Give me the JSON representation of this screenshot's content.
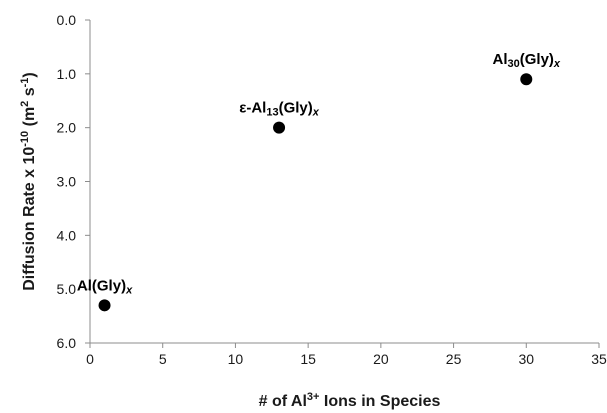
{
  "chart_data": {
    "type": "scatter",
    "xlabel": {
      "pre": "# of Al",
      "sup": "3+",
      "post": " Ions in Species"
    },
    "ylabel": {
      "pre": "Diffusion Rate x 10",
      "sup1": "-10",
      "mid": " (m",
      "sup2": "2",
      "mid2": " s",
      "sup3": "-1",
      "post": ")"
    },
    "xlim": [
      0,
      35
    ],
    "ylim": [
      0.0,
      6.0
    ],
    "y_inverted": true,
    "x_ticks": [
      "0",
      "5",
      "10",
      "15",
      "20",
      "25",
      "30",
      "35"
    ],
    "y_ticks": [
      "0.0",
      "1.0",
      "2.0",
      "3.0",
      "4.0",
      "5.0",
      "6.0"
    ],
    "marker_color": "#000000",
    "grid": false,
    "points": [
      {
        "x": 1,
        "y": 5.3,
        "label": [
          {
            "t": "Al(Gly)"
          },
          {
            "t": "x",
            "sub": true,
            "italic": true
          }
        ]
      },
      {
        "x": 13,
        "y": 2.0,
        "label": [
          {
            "t": "ε-Al"
          },
          {
            "t": "13",
            "sub": true
          },
          {
            "t": "(Gly)"
          },
          {
            "t": "x",
            "sub": true,
            "italic": true
          }
        ]
      },
      {
        "x": 30,
        "y": 1.1,
        "label": [
          {
            "t": "Al"
          },
          {
            "t": "30",
            "sub": true
          },
          {
            "t": "(Gly)"
          },
          {
            "t": "x",
            "sub": true,
            "italic": true
          }
        ]
      }
    ]
  }
}
